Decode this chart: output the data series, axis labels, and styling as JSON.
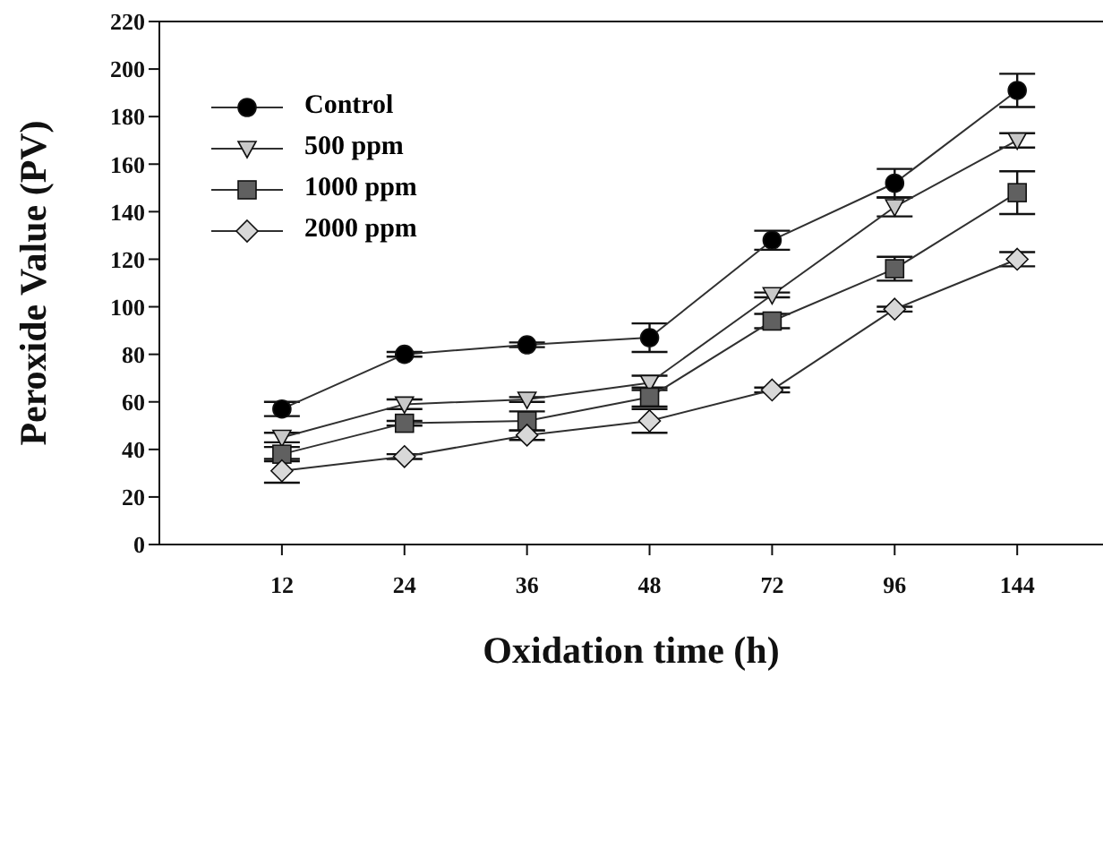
{
  "chart_data": {
    "type": "line",
    "xlabel": "Oxidation time (h)",
    "ylabel": "Peroxide Value (PV)",
    "categories": [
      "12",
      "24",
      "36",
      "48",
      "72",
      "96",
      "144"
    ],
    "series": [
      {
        "name": "Control",
        "color": "#000000",
        "marker": "circle",
        "values": [
          57,
          80,
          84,
          87,
          128,
          152,
          191
        ],
        "errors": [
          3,
          1,
          1,
          6,
          4,
          6,
          7
        ]
      },
      {
        "name": "500 ppm",
        "color": "#c8c8c8",
        "marker": "triangle",
        "values": [
          45,
          59,
          61,
          68,
          105,
          142,
          170
        ],
        "errors": [
          2,
          2,
          1,
          3,
          1,
          4,
          3
        ]
      },
      {
        "name": "1000 ppm",
        "color": "#606060",
        "marker": "square",
        "values": [
          38,
          51,
          52,
          62,
          94,
          116,
          148
        ],
        "errors": [
          3,
          1,
          4,
          4,
          3,
          5,
          9
        ]
      },
      {
        "name": "2000 ppm",
        "color": "#d8d8d8",
        "marker": "diamond",
        "values": [
          31,
          37,
          46,
          52,
          65,
          99,
          120
        ],
        "errors": [
          5,
          1,
          2,
          5,
          1,
          1,
          3
        ]
      }
    ],
    "ylim": [
      0,
      220
    ],
    "yticks": [
      0,
      20,
      40,
      60,
      80,
      100,
      120,
      140,
      160,
      180,
      200,
      220
    ],
    "grid": false,
    "legend": "top left"
  }
}
